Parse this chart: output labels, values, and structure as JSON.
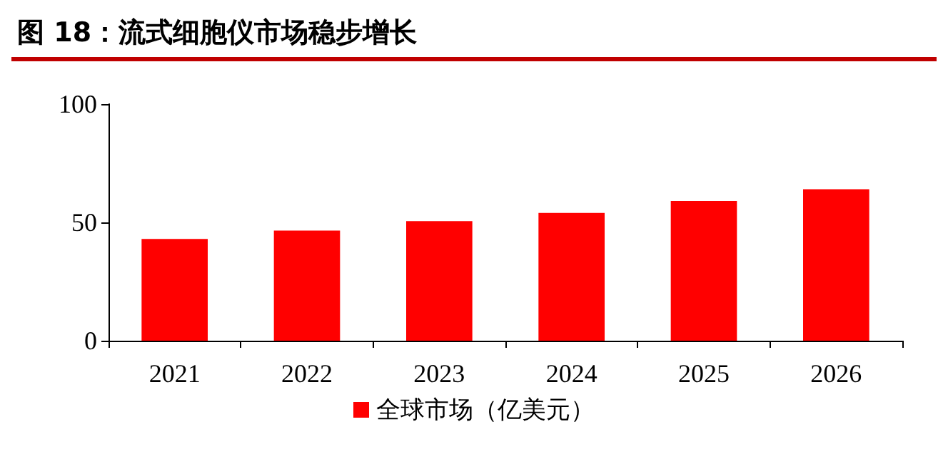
{
  "chart_data": {
    "type": "bar",
    "title": "图 18：流式细胞仪市场稳步增长",
    "categories": [
      "2021",
      "2022",
      "2023",
      "2024",
      "2025",
      "2026"
    ],
    "series": [
      {
        "name": "全球市场（亿美元）",
        "color": "#ff0000",
        "values": [
          43,
          46.5,
          50.5,
          54,
          59,
          64
        ]
      }
    ],
    "ylim": [
      0,
      100
    ],
    "yticks": [
      0,
      50,
      100
    ],
    "grid": false,
    "legend": "bottom"
  }
}
